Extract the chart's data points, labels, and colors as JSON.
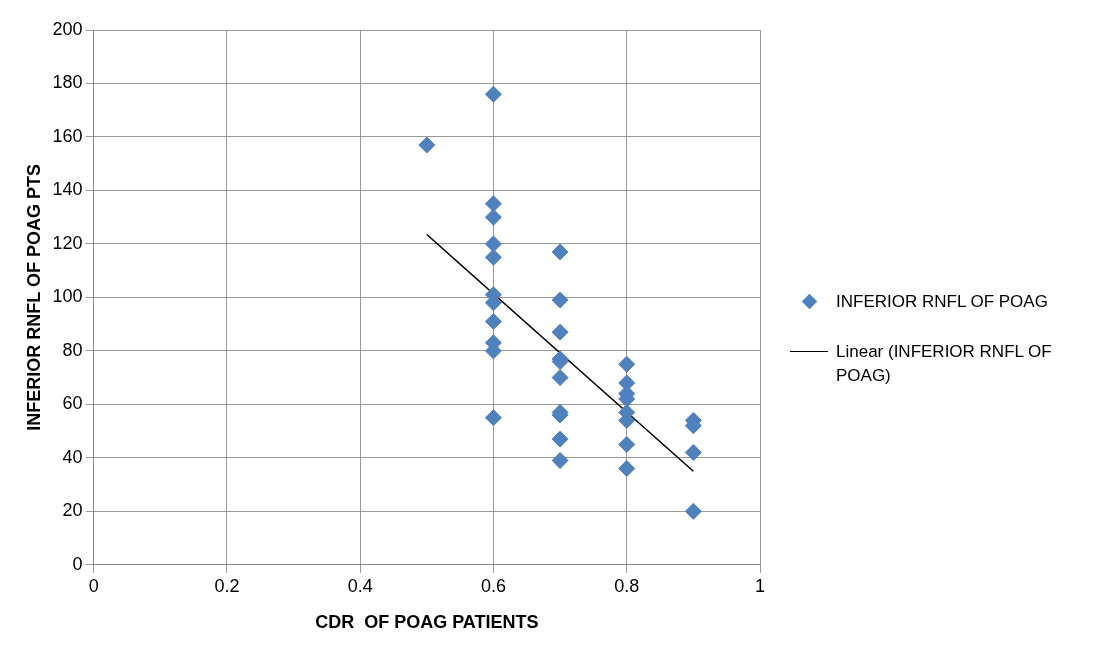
{
  "chart_data": {
    "type": "scatter",
    "xlabel": "CDR  OF POAG PATIENTS",
    "ylabel": "INFERIOR RNFL OF POAG PTS",
    "xlim": [
      0,
      1
    ],
    "xticks": [
      0,
      0.2,
      0.4,
      0.6,
      0.8,
      1
    ],
    "ylim": [
      0,
      200
    ],
    "yticks": [
      0,
      20,
      40,
      60,
      80,
      100,
      120,
      140,
      160,
      180,
      200
    ],
    "grid": true,
    "legend": "right",
    "marker": "diamond",
    "series": [
      {
        "name": "INFERIOR RNFL OF POAG",
        "color": "#4f81bd",
        "x": [
          0.5,
          0.6,
          0.6,
          0.6,
          0.6,
          0.6,
          0.6,
          0.6,
          0.6,
          0.6,
          0.6,
          0.6,
          0.7,
          0.7,
          0.7,
          0.7,
          0.7,
          0.7,
          0.7,
          0.7,
          0.7,
          0.7,
          0.8,
          0.8,
          0.8,
          0.8,
          0.8,
          0.8,
          0.8,
          0.8,
          0.9,
          0.9,
          0.9,
          0.9
        ],
        "values": [
          157,
          176,
          135,
          130,
          120,
          115,
          101,
          98,
          91,
          83,
          80,
          55,
          117,
          99,
          87,
          77,
          76,
          70,
          57,
          56,
          47,
          39,
          75,
          68,
          64,
          62,
          57,
          54,
          45,
          36,
          54,
          52,
          42,
          20
        ]
      },
      {
        "name": "Linear (INFERIOR RNFL OF POAG)",
        "type": "line",
        "marker": "none",
        "color": "#000000",
        "x": [
          0.5,
          0.9
        ],
        "values": [
          123.5,
          35
        ]
      }
    ]
  }
}
